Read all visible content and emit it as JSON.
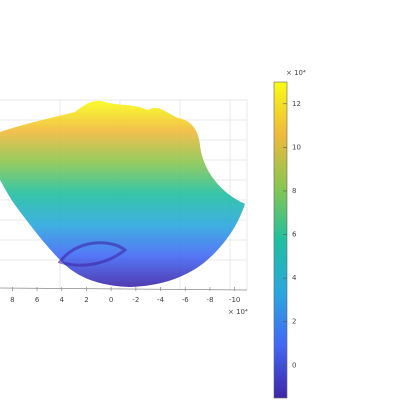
{
  "chart_data": {
    "type": "surface",
    "x_exponent_label": "× 10⁴",
    "xlim": [
      9,
      -11
    ],
    "xticks": [
      8,
      6,
      4,
      2,
      0,
      -2,
      -4,
      -6,
      -8,
      -10
    ],
    "colorbar_exponent_label": "× 10⁴",
    "clim": [
      -1.5,
      13
    ],
    "cticks": [
      0,
      2,
      4,
      6,
      8,
      10,
      12
    ],
    "colormap": [
      "#3e26a8",
      "#4268f5",
      "#2aa7de",
      "#1fbfa0",
      "#88c650",
      "#f0b93a",
      "#f9fb15"
    ]
  }
}
